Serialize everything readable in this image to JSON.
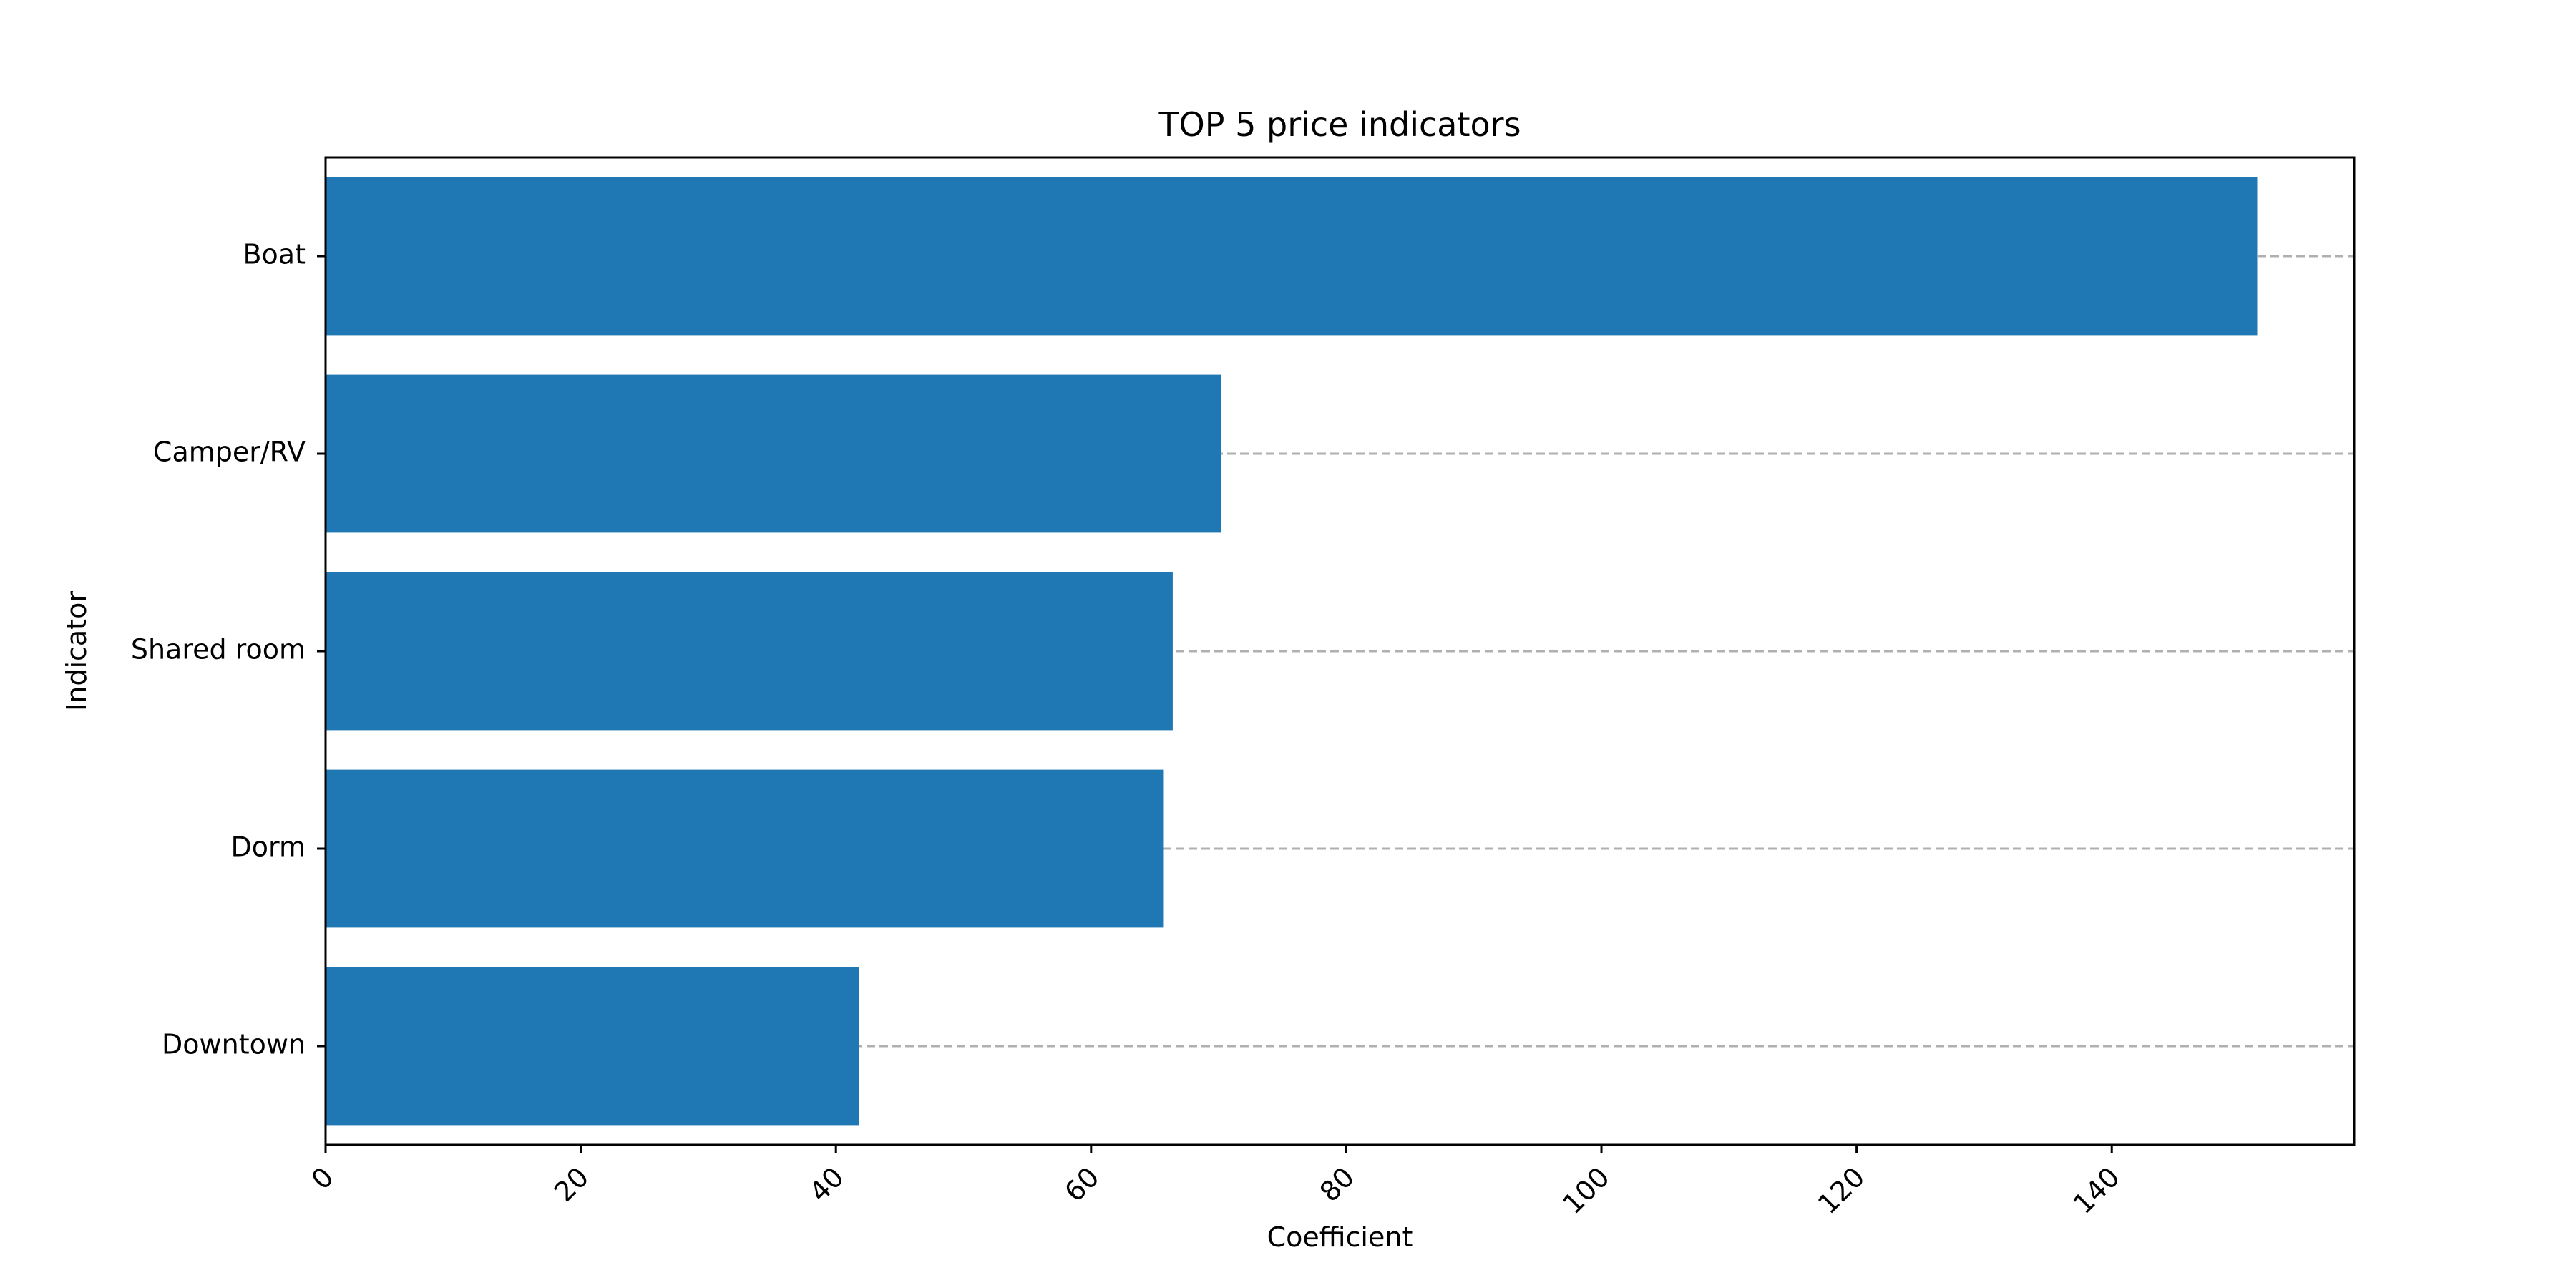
{
  "chart_data": {
    "type": "bar",
    "orientation": "horizontal",
    "title": "TOP 5 price indicators",
    "xlabel": "Coefficient",
    "ylabel": "Indicator",
    "categories": [
      "Boat",
      "Camper/RV",
      "Shared room",
      "Dorm",
      "Downtown"
    ],
    "values": [
      151.4,
      70.2,
      66.4,
      65.7,
      41.8
    ],
    "xlim": [
      0,
      159
    ],
    "xticks": [
      0,
      20,
      40,
      60,
      80,
      100,
      120,
      140
    ],
    "grid": "horizontal dashed at category ticks",
    "bar_color": "#1f77b4",
    "grid_color": "#b0b0b0"
  }
}
